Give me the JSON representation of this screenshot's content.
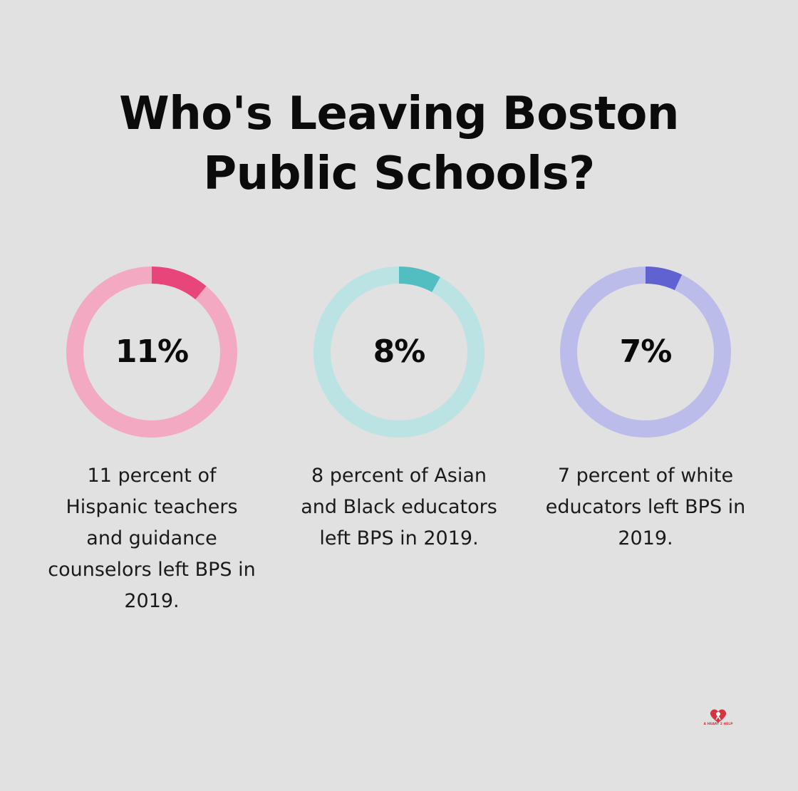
{
  "title": {
    "line1": "Who's Leaving Boston",
    "line2": "Public Schools?"
  },
  "chart_data": {
    "type": "donut",
    "title": "Who's Leaving Boston Public Schools?",
    "items": [
      {
        "value": 11,
        "label": "11%",
        "caption": "11 percent of Hispanic teachers and guidance counselors left BPS in 2019.",
        "color": "#e8457a",
        "track_color": "#f3a9c1"
      },
      {
        "value": 8,
        "label": "8%",
        "caption": "8 percent of Asian and Black educators left BPS in 2019.",
        "color": "#52bec1",
        "track_color": "#bbe3e4"
      },
      {
        "value": 7,
        "label": "7%",
        "caption": "7 percent of white educators left BPS in 2019.",
        "color": "#6062d2",
        "track_color": "#bcbceb"
      }
    ]
  },
  "logo": {
    "text": "A HEART 2 HELP",
    "icon": "heart-icon",
    "color": "#d63440"
  },
  "background_color": "#e0e1e0"
}
